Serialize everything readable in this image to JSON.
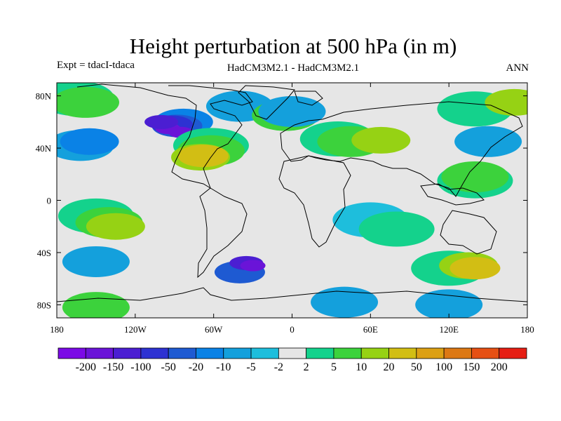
{
  "title": "Height perturbation at 500 hPa (in m)",
  "experiment_label": "Expt = tdacI-tdaca",
  "models_label": "HadCM3M2.1 - HadCM3M2.1",
  "period_label": "ANN",
  "lat_ticks": [
    {
      "value": 80,
      "label": "80N"
    },
    {
      "value": 40,
      "label": "40N"
    },
    {
      "value": 0,
      "label": "0"
    },
    {
      "value": -40,
      "label": "40S"
    },
    {
      "value": -80,
      "label": "80S"
    }
  ],
  "lon_ticks": [
    {
      "value": -180,
      "label": "180"
    },
    {
      "value": -120,
      "label": "120W"
    },
    {
      "value": -60,
      "label": "60W"
    },
    {
      "value": 0,
      "label": "0"
    },
    {
      "value": 60,
      "label": "60E"
    },
    {
      "value": 120,
      "label": "120E"
    },
    {
      "value": 180,
      "label": "180"
    }
  ],
  "colorbar": {
    "colors": [
      "#7b0ae6",
      "#6a14d8",
      "#4b1ed2",
      "#2d32d2",
      "#1e5ad2",
      "#0a82e6",
      "#14a0dc",
      "#1ebedc",
      "#e6e6e6",
      "#14d28c",
      "#3cd23c",
      "#96d214",
      "#d2be14",
      "#dca014",
      "#dc7814",
      "#e65014",
      "#e61e14"
    ],
    "labels": [
      "-200",
      "-150",
      "-100",
      "-50",
      "-20",
      "-10",
      "-5",
      "-2",
      "2",
      "5",
      "10",
      "20",
      "50",
      "100",
      "150",
      "200"
    ]
  },
  "anomalies": [
    {
      "lon": -165,
      "lat": 78,
      "level": 1
    },
    {
      "lon": -158,
      "lat": 75,
      "level": 2
    },
    {
      "lon": -162,
      "lat": 42,
      "level": -2
    },
    {
      "lon": -155,
      "lat": 45,
      "level": -3
    },
    {
      "lon": -83,
      "lat": 60,
      "level": -3
    },
    {
      "lon": -88,
      "lat": 57,
      "level": -4
    },
    {
      "lon": -92,
      "lat": 58,
      "level": -5
    },
    {
      "lon": -95,
      "lat": 55,
      "level": -7
    },
    {
      "lon": -85,
      "lat": 52,
      "level": -7
    },
    {
      "lon": -100,
      "lat": 60,
      "level": -6
    },
    {
      "lon": -62,
      "lat": 42,
      "level": 1
    },
    {
      "lon": -62,
      "lat": 38,
      "level": 2
    },
    {
      "lon": -70,
      "lat": 33,
      "level": 3
    },
    {
      "lon": -68,
      "lat": 34,
      "level": 4
    },
    {
      "lon": -40,
      "lat": 72,
      "level": -2
    },
    {
      "lon": -5,
      "lat": 65,
      "level": 2
    },
    {
      "lon": 0,
      "lat": 68,
      "level": -2
    },
    {
      "lon": 35,
      "lat": 47,
      "level": 1
    },
    {
      "lon": 45,
      "lat": 45,
      "level": 2
    },
    {
      "lon": 68,
      "lat": 46,
      "level": 3
    },
    {
      "lon": 150,
      "lat": 45,
      "level": -2
    },
    {
      "lon": 140,
      "lat": 70,
      "level": 1
    },
    {
      "lon": 170,
      "lat": 75,
      "level": 3
    },
    {
      "lon": 140,
      "lat": 15,
      "level": 1
    },
    {
      "lon": 140,
      "lat": 18,
      "level": 2
    },
    {
      "lon": 60,
      "lat": -15,
      "level": -1
    },
    {
      "lon": 80,
      "lat": -22,
      "level": 1
    },
    {
      "lon": -150,
      "lat": -12,
      "level": 1
    },
    {
      "lon": -140,
      "lat": -17,
      "level": 2
    },
    {
      "lon": -135,
      "lat": -20,
      "level": 3
    },
    {
      "lon": -40,
      "lat": -55,
      "level": -4
    },
    {
      "lon": -35,
      "lat": -48,
      "level": -6
    },
    {
      "lon": -30,
      "lat": -50,
      "level": -7
    },
    {
      "lon": -150,
      "lat": -47,
      "level": -2
    },
    {
      "lon": 120,
      "lat": -52,
      "level": 1
    },
    {
      "lon": 135,
      "lat": -50,
      "level": 3
    },
    {
      "lon": 140,
      "lat": -52,
      "level": 4
    },
    {
      "lon": -150,
      "lat": -82,
      "level": 2
    },
    {
      "lon": 40,
      "lat": -78,
      "level": -2
    },
    {
      "lon": 120,
      "lat": -80,
      "level": -2
    }
  ]
}
